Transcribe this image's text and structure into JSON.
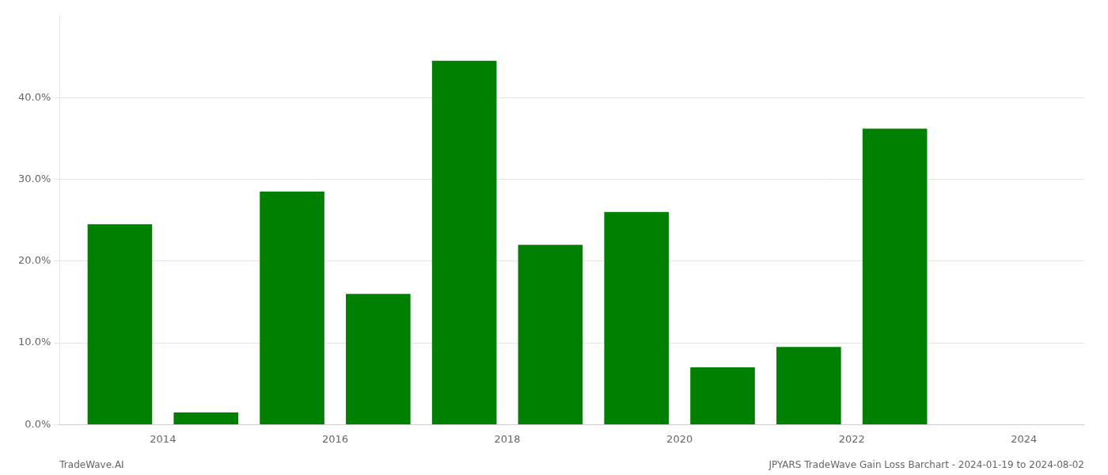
{
  "chart_data": {
    "type": "bar",
    "x": [
      2013.5,
      2014.5,
      2015.5,
      2016.5,
      2017.5,
      2018.5,
      2019.5,
      2020.5,
      2021.5,
      2022.5,
      2023.5
    ],
    "values": [
      0.245,
      0.015,
      0.285,
      0.16,
      0.445,
      0.22,
      0.26,
      0.07,
      0.095,
      0.362,
      0.0
    ],
    "color": "#008000",
    "xlim": [
      2012.8,
      2024.7
    ],
    "xticks": [
      2014,
      2016,
      2018,
      2020,
      2022,
      2024
    ],
    "ylim": [
      0,
      0.5
    ],
    "yticks": [
      {
        "value": 0.0,
        "label": "0.0%"
      },
      {
        "value": 0.1,
        "label": "10.0%"
      },
      {
        "value": 0.2,
        "label": "20.0%"
      },
      {
        "value": 0.3,
        "label": "30.0%"
      },
      {
        "value": 0.4,
        "label": "40.0%"
      }
    ],
    "grid": true,
    "annotations": [
      "TradeWave.AI",
      "JPYARS TradeWave Gain Loss Barchart - 2024-01-19 to 2024-08-02"
    ]
  }
}
